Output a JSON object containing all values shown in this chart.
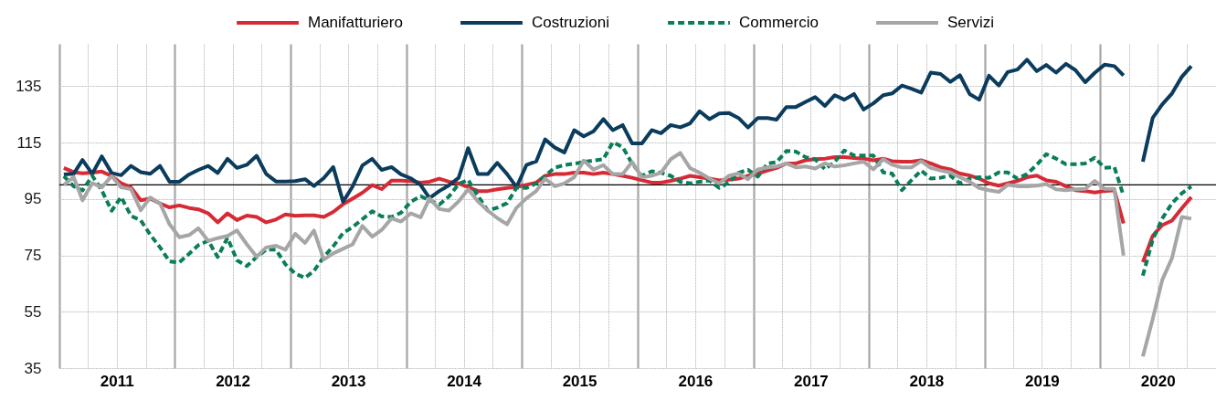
{
  "chart_data": {
    "type": "line",
    "x": [
      "2011-01-15",
      "2011-02-15",
      "2011-03-15",
      "2011-04-15",
      "2011-05-15",
      "2011-06-15",
      "2011-07-15",
      "2011-08-15",
      "2011-09-15",
      "2011-10-15",
      "2011-11-15",
      "2011-12-15",
      "2012-01-15",
      "2012-02-15",
      "2012-03-15",
      "2012-04-15",
      "2012-05-15",
      "2012-06-15",
      "2012-07-15",
      "2012-08-15",
      "2012-09-15",
      "2012-10-15",
      "2012-11-15",
      "2012-12-15",
      "2013-01-15",
      "2013-02-15",
      "2013-03-15",
      "2013-04-15",
      "2013-05-15",
      "2013-06-15",
      "2013-07-15",
      "2013-08-15",
      "2013-09-15",
      "2013-10-15",
      "2013-11-15",
      "2013-12-15",
      "2014-01-15",
      "2014-02-15",
      "2014-03-15",
      "2014-04-15",
      "2014-05-15",
      "2014-06-15",
      "2014-07-15",
      "2014-08-15",
      "2014-09-15",
      "2014-10-15",
      "2014-11-15",
      "2014-12-15",
      "2015-01-15",
      "2015-02-15",
      "2015-03-15",
      "2015-04-15",
      "2015-05-15",
      "2015-06-15",
      "2015-07-15",
      "2015-08-15",
      "2015-09-15",
      "2015-10-15",
      "2015-11-15",
      "2015-12-15",
      "2016-01-15",
      "2016-02-15",
      "2016-03-15",
      "2016-04-15",
      "2016-05-15",
      "2016-06-15",
      "2016-07-15",
      "2016-08-15",
      "2016-09-15",
      "2016-10-15",
      "2016-11-15",
      "2016-12-15",
      "2017-01-15",
      "2017-02-15",
      "2017-03-15",
      "2017-04-15",
      "2017-05-15",
      "2017-06-15",
      "2017-07-15",
      "2017-08-15",
      "2017-09-15",
      "2017-10-15",
      "2017-11-15",
      "2017-12-15",
      "2018-01-15",
      "2018-02-15",
      "2018-03-15",
      "2018-04-15",
      "2018-05-15",
      "2018-06-15",
      "2018-07-15",
      "2018-08-15",
      "2018-09-15",
      "2018-10-15",
      "2018-11-15",
      "2018-12-15",
      "2019-01-15",
      "2019-02-15",
      "2019-03-15",
      "2019-04-15",
      "2019-05-15",
      "2019-06-15",
      "2019-07-15",
      "2019-08-15",
      "2019-09-15",
      "2019-10-15",
      "2019-11-15",
      "2019-12-15",
      "2020-01-15",
      "2020-02-15",
      "2020-03-15",
      "2020-04-15",
      "2020-05-15",
      "2020-06-15",
      "2020-07-15",
      "2020-08-15",
      "2020-09-15",
      "2020-10-15"
    ],
    "xlim": [
      "2011-01",
      "2021-01"
    ],
    "xticks": [
      {
        "value": "2011-01",
        "label": null
      },
      {
        "value": "2011-04",
        "label": null
      },
      {
        "value": "2011-07",
        "label": "2011"
      },
      {
        "value": "2011-10",
        "label": null
      },
      {
        "value": "2012-01",
        "label": null
      },
      {
        "value": "2012-04",
        "label": null
      },
      {
        "value": "2012-07",
        "label": "2012"
      },
      {
        "value": "2012-10",
        "label": null
      },
      {
        "value": "2013-01",
        "label": null
      },
      {
        "value": "2013-04",
        "label": null
      },
      {
        "value": "2013-07",
        "label": "2013"
      },
      {
        "value": "2013-10",
        "label": null
      },
      {
        "value": "2014-01",
        "label": null
      },
      {
        "value": "2014-04",
        "label": null
      },
      {
        "value": "2014-07",
        "label": "2014"
      },
      {
        "value": "2014-10",
        "label": null
      },
      {
        "value": "2015-01",
        "label": null
      },
      {
        "value": "2015-04",
        "label": null
      },
      {
        "value": "2015-07",
        "label": "2015"
      },
      {
        "value": "2015-10",
        "label": null
      },
      {
        "value": "2016-01",
        "label": null
      },
      {
        "value": "2016-04",
        "label": null
      },
      {
        "value": "2016-07",
        "label": "2016"
      },
      {
        "value": "2016-10",
        "label": null
      },
      {
        "value": "2017-01",
        "label": null
      },
      {
        "value": "2017-04",
        "label": null
      },
      {
        "value": "2017-07",
        "label": "2017"
      },
      {
        "value": "2017-10",
        "label": null
      },
      {
        "value": "2018-01",
        "label": null
      },
      {
        "value": "2018-04",
        "label": null
      },
      {
        "value": "2018-07",
        "label": "2018"
      },
      {
        "value": "2018-10",
        "label": null
      },
      {
        "value": "2019-01",
        "label": null
      },
      {
        "value": "2019-04",
        "label": null
      },
      {
        "value": "2019-07",
        "label": "2019"
      },
      {
        "value": "2019-10",
        "label": null
      },
      {
        "value": "2020-01",
        "label": null
      },
      {
        "value": "2020-04",
        "label": null
      },
      {
        "value": "2020-07",
        "label": "2020"
      },
      {
        "value": "2020-10",
        "label": null
      }
    ],
    "ylim": [
      35,
      150
    ],
    "yticks": [
      35,
      55,
      75,
      95,
      115,
      135
    ],
    "grid": true,
    "legend": "top",
    "line_style": "solid",
    "ref_lines": [
      {
        "axis": "y",
        "value": 100,
        "color": "#000000"
      }
    ],
    "series": [
      {
        "name": "Manifatturiero",
        "color": "#d62b36",
        "values": [
          106.0,
          104.5,
          104.1,
          104.3,
          104.7,
          103.1,
          100.6,
          99.1,
          94.5,
          95.1,
          93.4,
          92.0,
          92.7,
          91.8,
          91.3,
          89.9,
          86.7,
          89.9,
          87.5,
          89.1,
          88.6,
          86.7,
          87.7,
          89.5,
          89.0,
          89.2,
          89.2,
          88.6,
          90.4,
          93.1,
          95.1,
          97.2,
          99.9,
          98.5,
          101.5,
          101.5,
          101.3,
          100.8,
          101.1,
          102.2,
          101.1,
          100.5,
          99.2,
          97.8,
          97.8,
          98.4,
          98.9,
          99.2,
          100.0,
          100.8,
          103.2,
          103.8,
          103.8,
          104.3,
          104.3,
          103.8,
          104.3,
          103.8,
          103.2,
          102.5,
          101.6,
          100.8,
          100.8,
          101.4,
          102.2,
          103.2,
          102.7,
          102.2,
          101.6,
          101.8,
          102.2,
          103.2,
          104.0,
          105.1,
          106.0,
          107.6,
          107.6,
          108.7,
          109.1,
          109.3,
          109.8,
          109.8,
          109.5,
          109.3,
          108.7,
          109.3,
          108.4,
          108.2,
          108.2,
          108.7,
          107.6,
          106.2,
          105.5,
          104.0,
          103.3,
          102.2,
          100.5,
          99.7,
          100.5,
          101.4,
          102.7,
          103.3,
          101.6,
          101.1,
          99.5,
          98.1,
          97.8,
          97.3,
          97.8,
          98.1,
          86.3,
          null,
          72.6,
          81.9,
          85.7,
          87.3,
          91.7,
          95.6
        ]
      },
      {
        "name": "Costruzioni",
        "color": "#0b3c5d",
        "values": [
          103.7,
          103.9,
          108.8,
          103.9,
          110.1,
          104.2,
          103.4,
          106.7,
          104.5,
          103.9,
          106.7,
          101.1,
          101.1,
          103.7,
          105.3,
          106.7,
          104.2,
          109.2,
          106.0,
          107.1,
          110.3,
          103.9,
          101.2,
          101.2,
          101.3,
          102.0,
          99.6,
          102.4,
          106.3,
          94.0,
          99.4,
          106.9,
          109.2,
          105.3,
          106.3,
          103.7,
          102.3,
          99.9,
          95.3,
          97.8,
          99.8,
          102.5,
          113.0,
          103.8,
          103.8,
          107.8,
          103.8,
          99.2,
          107.0,
          108.3,
          116.1,
          113.2,
          111.5,
          119.4,
          117.2,
          119.0,
          123.3,
          119.4,
          121.2,
          114.7,
          114.7,
          119.4,
          118.3,
          121.2,
          120.4,
          121.8,
          126.1,
          123.3,
          125.3,
          125.5,
          123.7,
          120.3,
          123.7,
          123.7,
          123.1,
          127.6,
          127.6,
          129.4,
          131.1,
          128.0,
          131.8,
          130.2,
          132.2,
          126.7,
          128.9,
          131.8,
          132.4,
          135.2,
          134.1,
          132.7,
          139.8,
          139.3,
          136.5,
          138.9,
          132.2,
          130.2,
          138.7,
          135.2,
          140.0,
          140.9,
          144.4,
          140.3,
          142.5,
          139.8,
          142.9,
          140.7,
          136.4,
          139.7,
          142.6,
          142.1,
          138.8,
          null,
          108.2,
          123.7,
          128.5,
          132.4,
          138.3,
          142.1
        ]
      },
      {
        "name": "Commercio",
        "color": "#0a7d5a",
        "line_style": "dashed",
        "values": [
          103.1,
          99.5,
          98.0,
          103.2,
          98.0,
          90.8,
          95.7,
          89.0,
          87.4,
          82.3,
          77.8,
          72.8,
          72.5,
          75.6,
          78.6,
          80.2,
          74.4,
          81.2,
          73.2,
          71.2,
          74.4,
          77.0,
          77.0,
          71.8,
          68.5,
          67.0,
          69.5,
          74.4,
          78.2,
          82.9,
          85.0,
          87.8,
          90.6,
          88.8,
          88.6,
          90.1,
          94.0,
          96.0,
          94.5,
          93.0,
          95.8,
          100.3,
          101.8,
          96.0,
          90.9,
          91.9,
          93.5,
          99.0,
          98.9,
          100.5,
          103.2,
          106.1,
          107.0,
          107.5,
          108.1,
          108.6,
          109.1,
          115.1,
          113.4,
          107.5,
          103.2,
          104.8,
          104.3,
          103.2,
          101.1,
          100.5,
          101.1,
          101.6,
          98.9,
          100.8,
          104.3,
          105.3,
          102.9,
          107.6,
          108.0,
          112.0,
          111.8,
          109.8,
          109.1,
          105.5,
          108.2,
          112.2,
          110.4,
          110.4,
          110.4,
          104.4,
          104.0,
          98.1,
          101.6,
          105.1,
          102.2,
          102.5,
          103.3,
          100.5,
          102.2,
          102.7,
          102.5,
          104.4,
          104.4,
          102.2,
          103.8,
          107.1,
          110.9,
          109.3,
          107.3,
          107.3,
          107.6,
          109.6,
          106.0,
          106.3,
          96.1,
          null,
          67.8,
          80.5,
          88.0,
          93.5,
          97.0,
          99.4
        ]
      },
      {
        "name": "Servizi",
        "color": "#a6a6a6",
        "values": [
          99.9,
          102.8,
          94.5,
          100.6,
          99.1,
          103.1,
          99.1,
          98.5,
          91.0,
          95.5,
          93.4,
          86.0,
          81.4,
          82.2,
          84.6,
          80.1,
          81.1,
          81.9,
          83.8,
          78.9,
          74.5,
          77.8,
          78.4,
          77.0,
          82.6,
          79.4,
          83.8,
          73.5,
          75.7,
          77.3,
          78.9,
          85.4,
          81.6,
          84.0,
          88.1,
          87.0,
          89.9,
          88.5,
          95.2,
          91.4,
          90.9,
          94.1,
          98.4,
          94.1,
          90.9,
          88.2,
          86.0,
          91.9,
          95.2,
          97.8,
          102.2,
          99.5,
          100.5,
          102.7,
          108.6,
          105.4,
          107.0,
          103.8,
          103.8,
          108.1,
          102.7,
          103.2,
          104.3,
          109.1,
          111.3,
          105.9,
          104.3,
          102.2,
          100.5,
          103.2,
          104.0,
          102.0,
          105.5,
          106.2,
          106.5,
          107.6,
          106.2,
          106.5,
          105.8,
          107.6,
          106.5,
          106.9,
          107.6,
          108.2,
          105.5,
          109.1,
          107.1,
          106.2,
          106.2,
          108.4,
          106.0,
          105.1,
          104.4,
          102.7,
          101.1,
          98.9,
          98.1,
          97.5,
          100.0,
          99.5,
          99.5,
          99.7,
          100.3,
          98.4,
          98.1,
          98.4,
          98.6,
          101.4,
          98.6,
          98.6,
          74.9,
          null,
          39.1,
          52.3,
          66.2,
          74.0,
          88.6,
          88.0
        ]
      }
    ]
  }
}
